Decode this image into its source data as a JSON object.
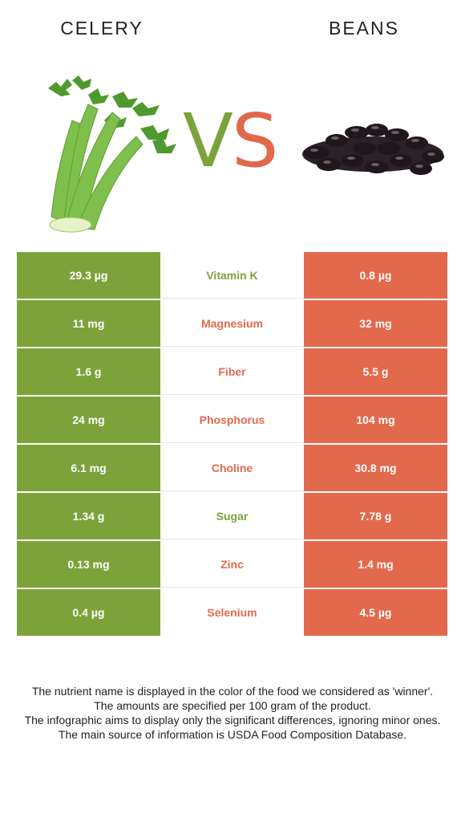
{
  "header": {
    "left_food": "CELERY",
    "right_food": "BEANS",
    "vs_v": "V",
    "vs_s": "S"
  },
  "colors": {
    "left_winner": "#7ba33a",
    "right_winner": "#e3694d"
  },
  "images": {
    "left": "celery-image",
    "right": "beans-image"
  },
  "nutrients": [
    {
      "name": "Vitamin K",
      "left": "29.3 µg",
      "right": "0.8 µg",
      "winner": "left"
    },
    {
      "name": "Magnesium",
      "left": "11 mg",
      "right": "32 mg",
      "winner": "right"
    },
    {
      "name": "Fiber",
      "left": "1.6 g",
      "right": "5.5 g",
      "winner": "right"
    },
    {
      "name": "Phosphorus",
      "left": "24 mg",
      "right": "104 mg",
      "winner": "right"
    },
    {
      "name": "Choline",
      "left": "6.1 mg",
      "right": "30.8 mg",
      "winner": "right"
    },
    {
      "name": "Sugar",
      "left": "1.34 g",
      "right": "7.78 g",
      "winner": "left"
    },
    {
      "name": "Zinc",
      "left": "0.13 mg",
      "right": "1.4 mg",
      "winner": "right"
    },
    {
      "name": "Selenium",
      "left": "0.4 µg",
      "right": "4.5 µg",
      "winner": "right"
    }
  ],
  "footnotes": [
    "The nutrient name is displayed in the color of the food we considered as 'winner'.",
    "The amounts are specified per 100 gram of the product.",
    "The infographic aims to display only the significant differences, ignoring minor ones.",
    "The main source of information is USDA Food Composition Database."
  ]
}
